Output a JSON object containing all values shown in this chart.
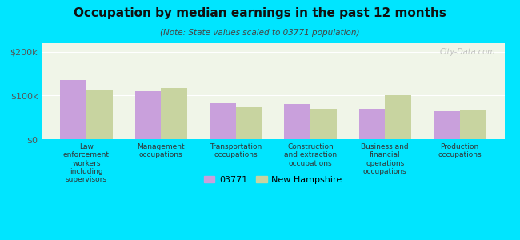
{
  "title": "Occupation by median earnings in the past 12 months",
  "subtitle": "(Note: State values scaled to 03771 population)",
  "categories": [
    "Law\nenforcement\nworkers\nincluding\nsupervisors",
    "Management\noccupations",
    "Transportation\noccupations",
    "Construction\nand extraction\noccupations",
    "Business and\nfinancial\noperations\noccupations",
    "Production\noccupations"
  ],
  "values_03771": [
    135000,
    110000,
    82000,
    80000,
    70000,
    65000
  ],
  "values_nh": [
    112000,
    118000,
    73000,
    70000,
    100000,
    68000
  ],
  "color_03771": "#c9a0dc",
  "color_nh": "#c8d4a0",
  "bar_width": 0.35,
  "ylim": [
    0,
    220000
  ],
  "yticks": [
    0,
    100000,
    200000
  ],
  "ytick_labels": [
    "$0",
    "$100k",
    "$200k"
  ],
  "background_color": "#00e5ff",
  "plot_bg_start": "#ffffff",
  "plot_bg_end": "#e8f5e0",
  "legend_label_03771": "03771",
  "legend_label_nh": "New Hampshire",
  "watermark": "City-Data.com"
}
